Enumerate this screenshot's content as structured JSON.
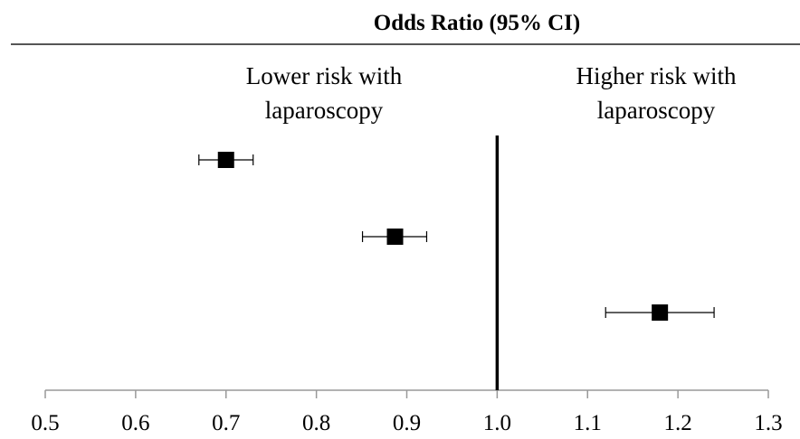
{
  "chart_data": {
    "type": "scatter",
    "title": "Odds Ratio (95% CI)",
    "xlim": [
      0.5,
      1.3
    ],
    "ticks": [
      "0.5",
      "0.6",
      "0.7",
      "0.8",
      "0.9",
      "1.0",
      "1.1",
      "1.2",
      "1.3"
    ],
    "reference_line": 1.0,
    "annotations": {
      "left": [
        "Lower risk with",
        "laparoscopy"
      ],
      "right": [
        "Higher risk with",
        "laparoscopy"
      ]
    },
    "points": [
      {
        "or": 0.7,
        "ci_low": 0.67,
        "ci_high": 0.73
      },
      {
        "or": 0.887,
        "ci_low": 0.851,
        "ci_high": 0.922
      },
      {
        "or": 1.18,
        "ci_low": 1.12,
        "ci_high": 1.24
      }
    ]
  }
}
